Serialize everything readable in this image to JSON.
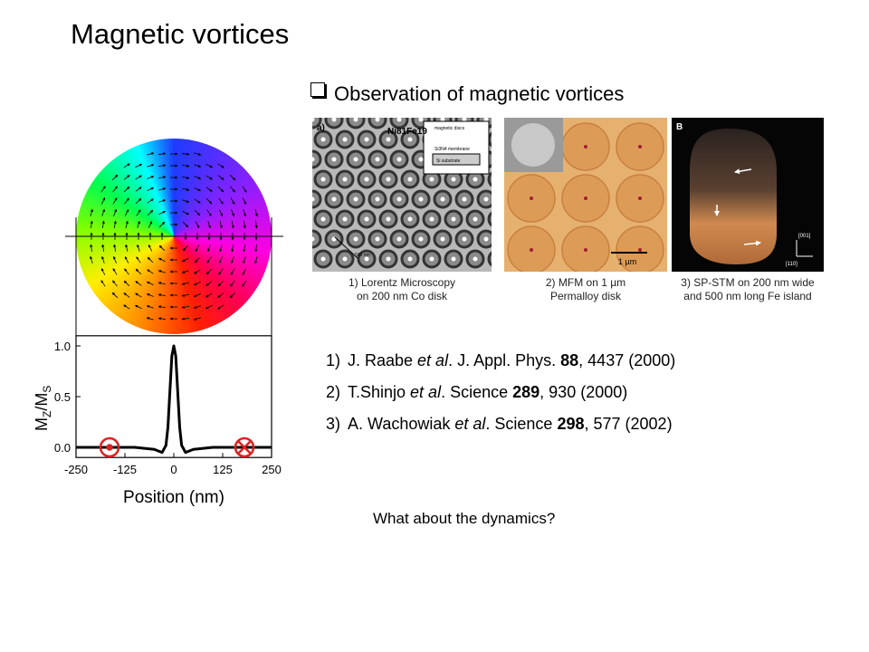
{
  "title": "Magnetic vortices",
  "section": "Observation of magnetic vortices",
  "figures": [
    {
      "label": "a)",
      "texts": [
        "Ni81Fe19",
        "magnetic discs",
        "Si3N4 membrane",
        "Si substrate",
        "500 nm"
      ],
      "caption": [
        "1) Lorentz Microscopy",
        "on 200 nm Co disk"
      ]
    },
    {
      "texts": [
        "1 µm"
      ],
      "caption": [
        "2) MFM on 1 µm",
        "Permalloy disk"
      ]
    },
    {
      "label": "B",
      "texts": [
        "[001]",
        "[110]"
      ],
      "caption": [
        "3) SP-STM on 200 nm wide",
        "and 500 nm long Fe island"
      ]
    }
  ],
  "references": [
    {
      "number": "1)",
      "parts": [
        {
          "text": "J. Raabe "
        },
        {
          "text": "et al",
          "style": "italic"
        },
        {
          "text": ". J. Appl. Phys. "
        },
        {
          "text": "88",
          "style": "bold"
        },
        {
          "text": ", 4437 (2000)"
        }
      ]
    },
    {
      "number": "2)",
      "parts": [
        {
          "text": "T.Shinjo "
        },
        {
          "text": "et al",
          "style": "italic"
        },
        {
          "text": ". Science "
        },
        {
          "text": "289",
          "style": "bold"
        },
        {
          "text": ", 930 (2000)"
        }
      ]
    },
    {
      "number": "3)",
      "parts": [
        {
          "text": "A. Wachowiak "
        },
        {
          "text": "et al",
          "style": "italic"
        },
        {
          "text": ". Science "
        },
        {
          "text": "298",
          "style": "bold"
        },
        {
          "text": ", 577 (2002)"
        }
      ]
    }
  ],
  "question": "What about the dynamics?",
  "chart_data": {
    "type": "line",
    "x_label": "Position (nm)",
    "y_label": [
      "M",
      "Z",
      "/M",
      "S"
    ],
    "x": [
      -250,
      -200,
      -150,
      -100,
      -50,
      -30,
      -20,
      -15,
      -10,
      -5,
      0,
      5,
      10,
      15,
      20,
      30,
      50,
      100,
      150,
      200,
      250
    ],
    "values": [
      0,
      0,
      0,
      0,
      -0.02,
      -0.05,
      0.02,
      0.2,
      0.55,
      0.9,
      1.0,
      0.9,
      0.55,
      0.2,
      0.02,
      -0.05,
      -0.02,
      0,
      0,
      0,
      0
    ],
    "color": "#000000",
    "xlim": [
      -250,
      250
    ],
    "ylim": [
      -0.1,
      1.1
    ],
    "xticks": [
      -250,
      -125,
      0,
      125,
      250
    ],
    "yticks": [
      {
        "value": 0,
        "label": "0.0"
      },
      {
        "value": 0.5,
        "label": "0.5"
      },
      {
        "value": 1,
        "label": "1.0"
      }
    ]
  }
}
